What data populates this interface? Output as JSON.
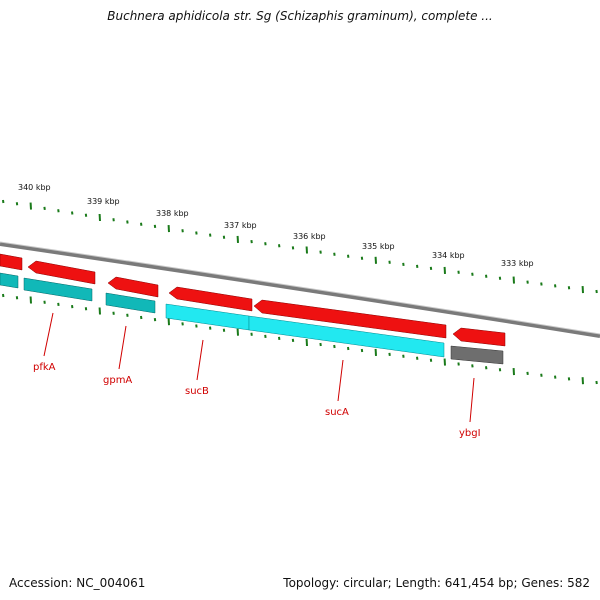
{
  "title": "Buchnera aphidicola str. Sg (Schizaphis graminum), complete ...",
  "footer": {
    "accession": "Accession: NC_004061",
    "summary": "Topology: circular; Length: 641,454 bp; Genes: 582"
  },
  "colors": {
    "forward_cds": "#ee1111",
    "reverse_cds": "#00c8cc",
    "other_gene": "#666666",
    "backbone": "#888888",
    "ticks": "#1a7a1a",
    "label": "#d00000"
  },
  "scale_labels": [
    "340 kbp",
    "339 kbp",
    "338 kbp",
    "337 kbp",
    "336 kbp",
    "335 kbp",
    "334 kbp",
    "333 kbp"
  ],
  "genes": [
    {
      "name": "pfkA"
    },
    {
      "name": "gpmA"
    },
    {
      "name": "sucB"
    },
    {
      "name": "sucA"
    },
    {
      "name": "ybgI"
    }
  ]
}
